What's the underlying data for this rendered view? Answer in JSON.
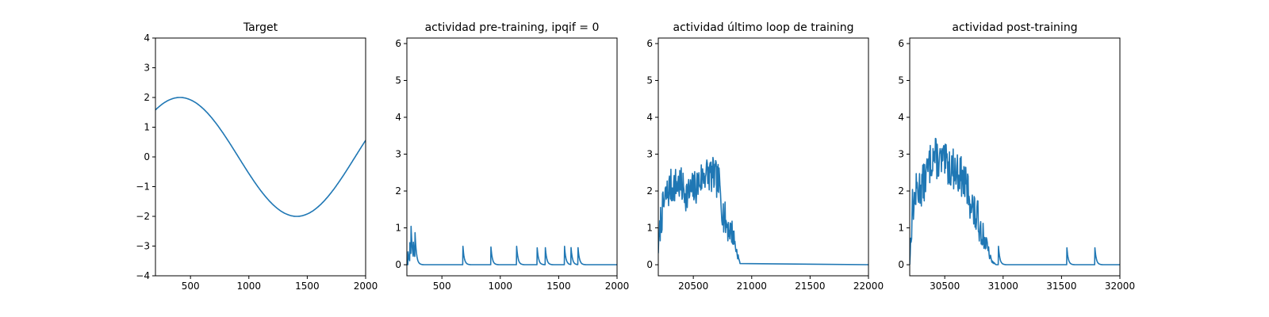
{
  "figure": {
    "background": "#ffffff",
    "line_color": "#1f77b4"
  },
  "chart_data": [
    {
      "type": "line",
      "title": "Target",
      "xlim": [
        200,
        2000
      ],
      "ylim": [
        -4,
        4
      ],
      "xticks": [
        500,
        1000,
        1500,
        2000
      ],
      "yticks": [
        -4,
        -3,
        -2,
        -1,
        0,
        1,
        2,
        3,
        4
      ],
      "xtick_labels": [
        "500",
        "1000",
        "1500",
        "2000"
      ],
      "ytick_labels": [
        "−4",
        "−3",
        "−2",
        "−1",
        "0",
        "1",
        "2",
        "3",
        "4"
      ],
      "series": [
        {
          "kind": "sine",
          "amplitude": 2,
          "peak_x": 410,
          "period": 2000,
          "x": [
            200,
            2000
          ]
        }
      ]
    },
    {
      "type": "line",
      "title": "actividad pre-training, ipqif = 0",
      "xlim": [
        200,
        2000
      ],
      "ylim": [
        -0.3,
        6.15
      ],
      "xticks": [
        500,
        1000,
        1500,
        2000
      ],
      "yticks": [
        0,
        1,
        2,
        3,
        4,
        5,
        6
      ],
      "xtick_labels": [
        "500",
        "1000",
        "1500",
        "2000"
      ],
      "ytick_labels": [
        "0",
        "1",
        "2",
        "3",
        "4",
        "5",
        "6"
      ],
      "series": [
        {
          "kind": "spike_train",
          "x_start": 200,
          "x_end": 2000,
          "decay": 12,
          "spikes": [
            [
              210,
              0.35
            ],
            [
              225,
              0.55
            ],
            [
              235,
              0.85
            ],
            [
              255,
              0.45
            ],
            [
              270,
              0.68
            ],
            [
              680,
              0.5
            ],
            [
              920,
              0.48
            ],
            [
              1140,
              0.5
            ],
            [
              1315,
              0.5
            ],
            [
              1385,
              0.5
            ],
            [
              1550,
              0.5
            ],
            [
              1605,
              0.5
            ],
            [
              1665,
              0.5
            ]
          ]
        }
      ]
    },
    {
      "type": "line",
      "title": "actividad último loop de training",
      "xlim": [
        20200,
        22000
      ],
      "ylim": [
        -0.3,
        6.15
      ],
      "xticks": [
        20500,
        21000,
        21500,
        22000
      ],
      "yticks": [
        0,
        1,
        2,
        3,
        4,
        5,
        6
      ],
      "xtick_labels": [
        "20500",
        "21000",
        "21500",
        "22000"
      ],
      "ytick_labels": [
        "0",
        "1",
        "2",
        "3",
        "4",
        "5",
        "6"
      ],
      "series": [
        {
          "kind": "noisy_envelope",
          "x_start": 20200,
          "x_end": 22000,
          "seed": 7,
          "step": 4,
          "noise": 0.5,
          "envelope": [
            [
              20200,
              0.4
            ],
            [
              20220,
              1.2
            ],
            [
              20260,
              1.8
            ],
            [
              20300,
              2.1
            ],
            [
              20380,
              2.2
            ],
            [
              20450,
              1.9
            ],
            [
              20520,
              2.1
            ],
            [
              20600,
              2.5
            ],
            [
              20680,
              2.4
            ],
            [
              20720,
              2.2
            ],
            [
              20760,
              1.3
            ],
            [
              20800,
              1.0
            ],
            [
              20840,
              0.85
            ],
            [
              20860,
              0.5
            ],
            [
              20900,
              0.03
            ],
            [
              22000,
              0.0
            ]
          ]
        }
      ]
    },
    {
      "type": "line",
      "title": "actividad post-training",
      "xlim": [
        30200,
        32000
      ],
      "ylim": [
        -0.3,
        6.15
      ],
      "xticks": [
        30500,
        31000,
        31500,
        32000
      ],
      "yticks": [
        0,
        1,
        2,
        3,
        4,
        5,
        6
      ],
      "xtick_labels": [
        "30500",
        "31000",
        "31500",
        "32000"
      ],
      "ytick_labels": [
        "0",
        "1",
        "2",
        "3",
        "4",
        "5",
        "6"
      ],
      "series": [
        {
          "kind": "noisy_envelope",
          "x_start": 30200,
          "x_end": 32000,
          "seed": 13,
          "step": 4,
          "noise": 0.55,
          "envelope": [
            [
              30200,
              0.0
            ],
            [
              30220,
              1.5
            ],
            [
              30260,
              2.0
            ],
            [
              30320,
              2.2
            ],
            [
              30400,
              3.0
            ],
            [
              30450,
              2.8
            ],
            [
              30520,
              2.7
            ],
            [
              30580,
              2.6
            ],
            [
              30640,
              2.4
            ],
            [
              30700,
              2.0
            ],
            [
              30750,
              1.4
            ],
            [
              30800,
              1.1
            ],
            [
              30850,
              0.6
            ],
            [
              30900,
              0.1
            ],
            [
              30940,
              0.0
            ],
            [
              32000,
              0.0
            ]
          ],
          "spikes": [
            [
              30960,
              0.5
            ],
            [
              31545,
              0.5
            ],
            [
              31785,
              0.5
            ]
          ],
          "decay": 12
        }
      ]
    }
  ]
}
